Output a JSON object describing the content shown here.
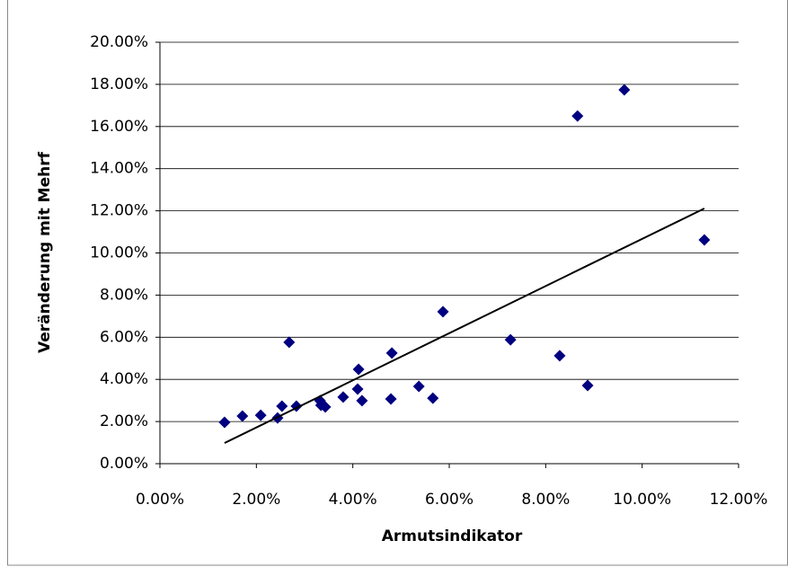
{
  "chart_data": {
    "type": "scatter",
    "x_label": "Armutsindikator",
    "y_label": "Veränderung mit Mehrf",
    "color": "#000080",
    "trend_color": "#000000",
    "grid": true,
    "x": [
      1.34,
      1.71,
      2.09,
      2.44,
      2.53,
      2.68,
      2.83,
      3.32,
      3.34,
      3.43,
      3.8,
      4.1,
      4.12,
      4.19,
      4.79,
      4.81,
      5.37,
      5.66,
      5.87,
      7.27,
      8.29,
      8.66,
      8.87,
      9.63,
      11.29
    ],
    "values": [
      1.96,
      2.26,
      2.3,
      2.17,
      2.73,
      5.76,
      2.73,
      2.99,
      2.77,
      2.69,
      3.16,
      3.54,
      4.48,
      2.99,
      3.07,
      5.25,
      3.67,
      3.11,
      7.21,
      5.88,
      5.12,
      16.5,
      3.71,
      17.74,
      10.62
    ],
    "trendline": {
      "x": [
        1.34,
        11.29
      ],
      "y": [
        0.98,
        12.11
      ]
    },
    "xlim": [
      0,
      12
    ],
    "ylim": [
      0,
      20
    ],
    "xticks": [
      {
        "value": 0,
        "label": "0.00%"
      },
      {
        "value": 2,
        "label": "2.00%"
      },
      {
        "value": 4,
        "label": "4.00%"
      },
      {
        "value": 6,
        "label": "6.00%"
      },
      {
        "value": 8,
        "label": "8.00%"
      },
      {
        "value": 10,
        "label": "10.00%"
      },
      {
        "value": 12,
        "label": "12.00%"
      }
    ],
    "yticks": [
      {
        "value": 0,
        "label": "0.00%"
      },
      {
        "value": 2,
        "label": "2.00%"
      },
      {
        "value": 4,
        "label": "4.00%"
      },
      {
        "value": 6,
        "label": "6.00%"
      },
      {
        "value": 8,
        "label": "8.00%"
      },
      {
        "value": 10,
        "label": "10.00%"
      },
      {
        "value": 12,
        "label": "12.00%"
      },
      {
        "value": 14,
        "label": "14.00%"
      },
      {
        "value": 16,
        "label": "16.00%"
      },
      {
        "value": 18,
        "label": "18.00%"
      },
      {
        "value": 20,
        "label": "20.00%"
      }
    ]
  }
}
